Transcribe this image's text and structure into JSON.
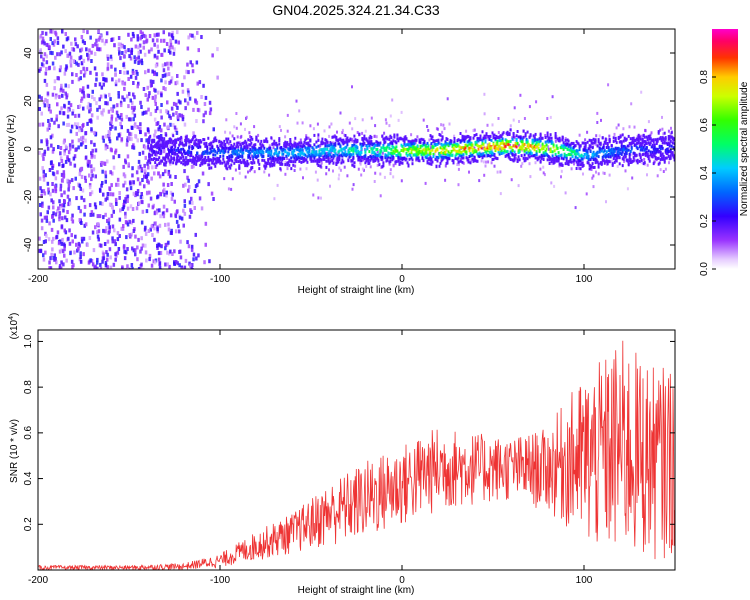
{
  "title": "GN04.2025.324.21.34.C33",
  "chart_data": [
    {
      "type": "heatmap",
      "xlabel": "Height of straight line (km)",
      "ylabel": "Frequency (Hz)",
      "xlim": [
        -200,
        150
      ],
      "ylim": [
        -50,
        50
      ],
      "xticks": [
        -200,
        -100,
        0,
        100
      ],
      "yticks": [
        -40,
        -20,
        0,
        20,
        40
      ],
      "colorbar": {
        "label": "Normalized spectral amplitude",
        "range": [
          0,
          1
        ],
        "ticks": [
          "0.0",
          "0.2",
          "0.4",
          "0.6",
          "0.8"
        ],
        "colormap": "rainbow (violet→blue→cyan→green→yellow→red→magenta)"
      },
      "ridge": {
        "description": "narrow band near 0 Hz",
        "x": [
          -140,
          -120,
          -100,
          -80,
          -60,
          -40,
          -20,
          0,
          20,
          40,
          60,
          80,
          100,
          120,
          140
        ],
        "center_hz": [
          0,
          0,
          -1,
          -1,
          -1,
          0,
          0,
          0,
          0,
          1,
          2,
          1,
          -2,
          0,
          1
        ],
        "peak_amplitude": [
          0.2,
          0.3,
          0.35,
          0.4,
          0.45,
          0.5,
          0.55,
          0.75,
          0.85,
          0.9,
          0.95,
          0.85,
          0.45,
          0.35,
          0.3
        ]
      },
      "noise_region": {
        "x_range": [
          -200,
          -100
        ],
        "amplitude": [
          0.05,
          0.25
        ]
      }
    },
    {
      "type": "line",
      "xlabel": "Height of straight line (km)",
      "ylabel": "SNR (10 * v/v)",
      "yscale_label": "(x10^4)",
      "xlim": [
        -200,
        150
      ],
      "ylim": [
        0,
        1.05
      ],
      "xticks": [
        -200,
        -100,
        0,
        100
      ],
      "yticks": [
        0.2,
        0.4,
        0.6,
        0.8,
        1.0
      ],
      "color": "#ee3333",
      "envelope": {
        "x": [
          -200,
          -150,
          -120,
          -100,
          -80,
          -60,
          -40,
          -20,
          0,
          20,
          40,
          60,
          80,
          90,
          100,
          110,
          120,
          130,
          140,
          150
        ],
        "upper": [
          0.02,
          0.02,
          0.03,
          0.07,
          0.17,
          0.25,
          0.38,
          0.48,
          0.55,
          0.63,
          0.6,
          0.58,
          0.62,
          0.75,
          0.85,
          0.92,
          1.02,
          0.95,
          0.88,
          0.92
        ],
        "lower": [
          0.0,
          0.0,
          0.0,
          0.01,
          0.04,
          0.07,
          0.1,
          0.13,
          0.18,
          0.25,
          0.28,
          0.3,
          0.25,
          0.18,
          0.08,
          0.05,
          0.03,
          0.03,
          0.04,
          0.05
        ]
      }
    }
  ]
}
